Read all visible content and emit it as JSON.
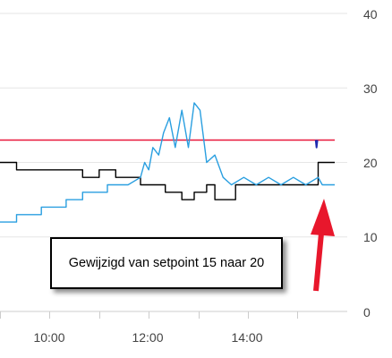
{
  "chart_data": {
    "type": "line",
    "x_tick_labels": [
      "10:00",
      "12:00",
      "14:00"
    ],
    "y_tick_labels": [
      "0",
      "10",
      "20",
      "30",
      "40"
    ],
    "ylim": [
      0,
      40
    ],
    "xlim": [
      "09:00",
      "15:45"
    ],
    "grid": true,
    "series": [
      {
        "color": "#e8173a",
        "points": [
          [
            "09:00",
            23
          ],
          [
            "15:45",
            23
          ]
        ]
      },
      {
        "color": "#000000",
        "points": [
          [
            "09:00",
            20
          ],
          [
            "09:20",
            20
          ],
          [
            "09:20",
            19
          ],
          [
            "10:40",
            19
          ],
          [
            "10:40",
            18
          ],
          [
            "11:00",
            18
          ],
          [
            "11:00",
            19
          ],
          [
            "11:20",
            19
          ],
          [
            "11:20",
            18
          ],
          [
            "11:50",
            18
          ],
          [
            "11:50",
            17
          ],
          [
            "12:20",
            17
          ],
          [
            "12:20",
            16
          ],
          [
            "12:40",
            16
          ],
          [
            "12:40",
            15
          ],
          [
            "12:55",
            15
          ],
          [
            "12:55",
            16
          ],
          [
            "13:10",
            16
          ],
          [
            "13:10",
            17
          ],
          [
            "13:20",
            17
          ],
          [
            "13:20",
            15
          ],
          [
            "13:45",
            15
          ],
          [
            "13:45",
            17
          ],
          [
            "15:25",
            17
          ],
          [
            "15:25",
            20
          ],
          [
            "15:45",
            20
          ]
        ]
      },
      {
        "color": "#2a9fe0",
        "points": [
          [
            "09:00",
            12
          ],
          [
            "09:20",
            12
          ],
          [
            "09:20",
            13
          ],
          [
            "09:50",
            13
          ],
          [
            "09:50",
            14
          ],
          [
            "10:20",
            14
          ],
          [
            "10:20",
            15
          ],
          [
            "10:40",
            15
          ],
          [
            "10:40",
            16
          ],
          [
            "11:10",
            16
          ],
          [
            "11:10",
            17
          ],
          [
            "11:35",
            17
          ],
          [
            "11:50",
            18
          ],
          [
            "11:55",
            20
          ],
          [
            "12:00",
            19
          ],
          [
            "12:05",
            22
          ],
          [
            "12:12",
            21
          ],
          [
            "12:18",
            24
          ],
          [
            "12:25",
            26
          ],
          [
            "12:32",
            22
          ],
          [
            "12:40",
            27
          ],
          [
            "12:48",
            22
          ],
          [
            "12:55",
            28
          ],
          [
            "13:02",
            27
          ],
          [
            "13:10",
            20
          ],
          [
            "13:20",
            21
          ],
          [
            "13:30",
            18
          ],
          [
            "13:40",
            17
          ],
          [
            "13:55",
            18
          ],
          [
            "14:10",
            17
          ],
          [
            "14:25",
            18
          ],
          [
            "14:40",
            17
          ],
          [
            "14:55",
            18
          ],
          [
            "15:10",
            17
          ],
          [
            "15:25",
            18
          ],
          [
            "15:30",
            17
          ],
          [
            "15:45",
            17
          ]
        ]
      },
      {
        "color": "#1f2bb0",
        "points": [
          [
            "15:22",
            23
          ],
          [
            "15:23",
            22
          ],
          [
            "15:24",
            23
          ]
        ]
      }
    ],
    "annotations": {
      "text": "Gewijzigd van setpoint 15 naar 20",
      "arrow_color": "#e8172c"
    }
  }
}
